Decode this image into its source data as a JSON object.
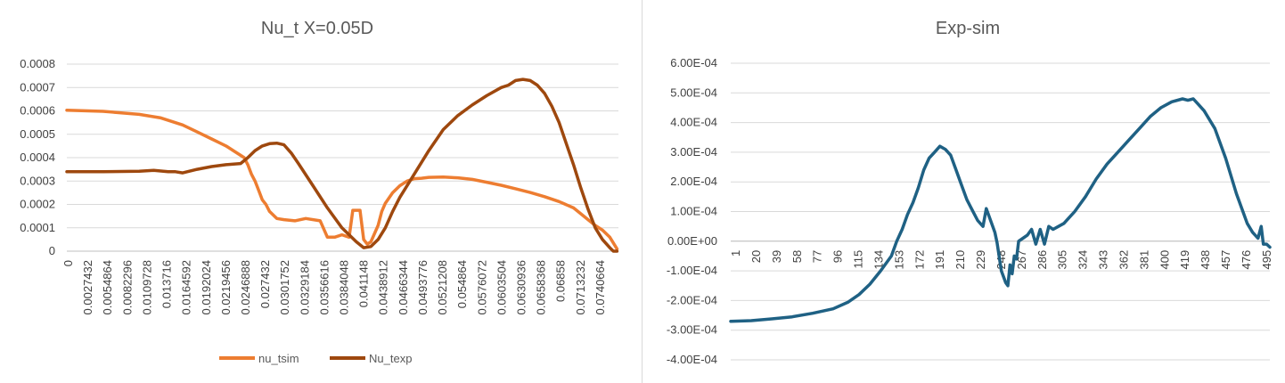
{
  "charts": [
    {
      "type": "line",
      "title": "Nu_t X=0.05D",
      "xlabel": "",
      "ylabel": "",
      "ylim": [
        0,
        0.0008
      ],
      "y_ticks": [
        "0",
        "0.0001",
        "0.0002",
        "0.0003",
        "0.0004",
        "0.0005",
        "0.0006",
        "0.0007",
        "0.0008"
      ],
      "x_ticks": [
        "0",
        "0.0027432",
        "0.0054864",
        "0.0082296",
        "0.0109728",
        "0.013716",
        "0.0164592",
        "0.0192024",
        "0.0219456",
        "0.0246888",
        "0.027432",
        "0.0301752",
        "0.0329184",
        "0.0356616",
        "0.0384048",
        "0.041148",
        "0.0438912",
        "0.0466344",
        "0.0493776",
        "0.0521208",
        "0.054864",
        "0.0576072",
        "0.0603504",
        "0.0630936",
        "0.0658368",
        "0.06858",
        "0.0713232",
        "0.0740664"
      ],
      "xlim": [
        0,
        0.0762
      ],
      "grid": true,
      "legend_position": "bottom",
      "series": [
        {
          "name": "nu_tsim",
          "color": "#ED7D31",
          "x": [
            0,
            0.005,
            0.01,
            0.013,
            0.016,
            0.018,
            0.02,
            0.021,
            0.022,
            0.023,
            0.024,
            0.0245,
            0.025,
            0.0255,
            0.026,
            0.0265,
            0.027,
            0.0275,
            0.028,
            0.029,
            0.03,
            0.0315,
            0.033,
            0.035,
            0.036,
            0.037,
            0.038,
            0.039,
            0.0395,
            0.04,
            0.0405,
            0.041,
            0.0415,
            0.042,
            0.043,
            0.0435,
            0.044,
            0.045,
            0.046,
            0.047,
            0.048,
            0.049,
            0.05,
            0.052,
            0.054,
            0.056,
            0.058,
            0.06,
            0.062,
            0.064,
            0.066,
            0.068,
            0.07,
            0.071,
            0.072,
            0.073,
            0.074,
            0.075,
            0.076
          ],
          "y": [
            0.000603,
            0.000598,
            0.000585,
            0.00057,
            0.00054,
            0.00051,
            0.00048,
            0.000465,
            0.00045,
            0.00043,
            0.00041,
            0.0004,
            0.00037,
            0.00033,
            0.0003,
            0.00026,
            0.00022,
            0.0002,
            0.00017,
            0.00014,
            0.000135,
            0.00013,
            0.00014,
            0.00013,
            6e-05,
            6e-05,
            7e-05,
            6e-05,
            0.000175,
            0.000175,
            0.000175,
            5e-05,
            3e-05,
            4e-05,
            0.00011,
            0.00017,
            0.000205,
            0.00025,
            0.00028,
            0.0003,
            0.00031,
            0.000312,
            0.000316,
            0.000317,
            0.000314,
            0.000307,
            0.000295,
            0.000282,
            0.000267,
            0.000251,
            0.000233,
            0.000212,
            0.000185,
            0.00016,
            0.000135,
            0.00011,
            9e-05,
            6e-05,
            1e-05
          ]
        },
        {
          "name": "Nu_texp",
          "color": "#9E480E",
          "x": [
            0,
            0.005,
            0.01,
            0.012,
            0.014,
            0.015,
            0.016,
            0.018,
            0.02,
            0.022,
            0.024,
            0.025,
            0.026,
            0.027,
            0.028,
            0.029,
            0.03,
            0.031,
            0.032,
            0.034,
            0.036,
            0.038,
            0.04,
            0.041,
            0.042,
            0.043,
            0.044,
            0.045,
            0.046,
            0.048,
            0.05,
            0.052,
            0.054,
            0.056,
            0.058,
            0.06,
            0.061,
            0.062,
            0.063,
            0.064,
            0.065,
            0.066,
            0.067,
            0.068,
            0.069,
            0.07,
            0.071,
            0.072,
            0.073,
            0.074,
            0.075,
            0.0755,
            0.076
          ],
          "y": [
            0.00034,
            0.00034,
            0.000342,
            0.000346,
            0.00034,
            0.00034,
            0.000335,
            0.00035,
            0.000362,
            0.00037,
            0.000375,
            0.0004,
            0.00043,
            0.00045,
            0.00046,
            0.000462,
            0.000455,
            0.00042,
            0.000375,
            0.00028,
            0.000185,
            0.0001,
            4e-05,
            1.5e-05,
            2e-05,
            5e-05,
            0.0001,
            0.00017,
            0.00023,
            0.00033,
            0.00043,
            0.00052,
            0.00058,
            0.000625,
            0.000665,
            0.0007,
            0.00071,
            0.00073,
            0.000735,
            0.00073,
            0.00071,
            0.000675,
            0.00062,
            0.00055,
            0.00046,
            0.00037,
            0.00027,
            0.00018,
            0.0001,
            5e-05,
            1.5e-05,
            0,
            0
          ]
        }
      ]
    },
    {
      "type": "line",
      "title": "Exp-sim",
      "xlabel": "",
      "ylabel": "",
      "ylim": [
        -0.0004,
        0.0006
      ],
      "y_ticks": [
        "-4.00E-04",
        "-3.00E-04",
        "-2.00E-04",
        "-1.00E-04",
        "0.00E+00",
        "1.00E-04",
        "2.00E-04",
        "3.00E-04",
        "4.00E-04",
        "5.00E-04",
        "6.00E-04"
      ],
      "x_ticks": [
        "1",
        "20",
        "39",
        "58",
        "77",
        "96",
        "115",
        "134",
        "153",
        "172",
        "191",
        "210",
        "229",
        "248",
        "267",
        "286",
        "305",
        "324",
        "343",
        "362",
        "381",
        "400",
        "419",
        "438",
        "457",
        "476",
        "495"
      ],
      "xlim": [
        1,
        501
      ],
      "grid": true,
      "legend_position": "none",
      "series": [
        {
          "name": "",
          "color": "#1F6184",
          "x": [
            1,
            20,
            39,
            58,
            77,
            96,
            110,
            120,
            130,
            140,
            150,
            155,
            160,
            165,
            170,
            175,
            180,
            185,
            190,
            195,
            200,
            205,
            210,
            215,
            220,
            225,
            230,
            235,
            238,
            240,
            243,
            246,
            248,
            252,
            256,
            258,
            260,
            262,
            264,
            266,
            268,
            272,
            276,
            280,
            284,
            288,
            292,
            296,
            300,
            305,
            310,
            315,
            320,
            330,
            340,
            350,
            360,
            370,
            380,
            390,
            400,
            410,
            420,
            425,
            430,
            435,
            440,
            450,
            460,
            470,
            480,
            485,
            490,
            493,
            495,
            498,
            501
          ],
          "y": [
            -0.00027,
            -0.000268,
            -0.000262,
            -0.000255,
            -0.000243,
            -0.000228,
            -0.000205,
            -0.00018,
            -0.000145,
            -0.0001,
            -5e-05,
            0,
            4e-05,
            9e-05,
            0.00013,
            0.00018,
            0.00024,
            0.00028,
            0.0003,
            0.00032,
            0.00031,
            0.00029,
            0.00024,
            0.00019,
            0.00014,
            0.000105,
            7e-05,
            5e-05,
            0.00011,
            9e-05,
            6e-05,
            3e-05,
            -5e-06,
            -0.0001,
            -0.00014,
            -0.00015,
            -8e-05,
            -0.00011,
            -5e-05,
            -6e-05,
            0,
            1e-05,
            2e-05,
            4e-05,
            -1e-05,
            4e-05,
            -1e-05,
            5e-05,
            4e-05,
            5e-05,
            6e-05,
            8e-05,
            0.0001,
            0.00015,
            0.00021,
            0.00026,
            0.0003,
            0.00034,
            0.00038,
            0.00042,
            0.00045,
            0.00047,
            0.00048,
            0.000475,
            0.00048,
            0.00046,
            0.00044,
            0.00038,
            0.00028,
            0.00016,
            6e-05,
            3e-05,
            1e-05,
            5e-05,
            -1e-05,
            -1e-05,
            -2e-05
          ]
        }
      ]
    }
  ]
}
